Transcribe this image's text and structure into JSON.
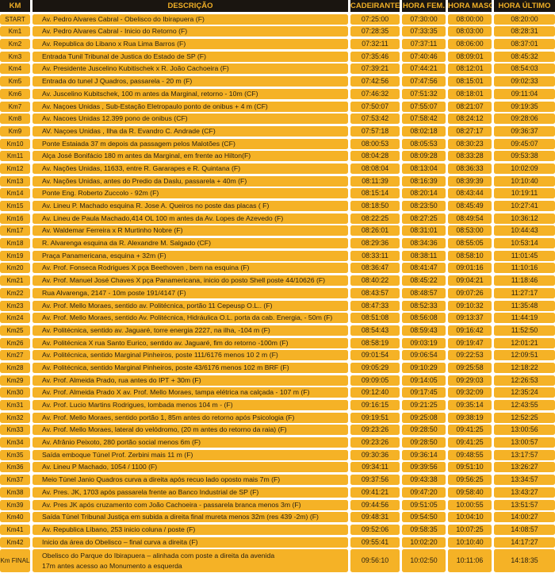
{
  "colors": {
    "header_bg": "#1a1510",
    "header_text": "#f0af26",
    "cell_bg": "#f5b226",
    "cell_text": "#2a2212",
    "page_bg": "#ffffff"
  },
  "header": {
    "columns": [
      "KM",
      "DESCRIÇÃO",
      "CADEIRANTE",
      "HORA FEM.",
      "HORA MASC.",
      "HORA ÚLTIMO"
    ]
  },
  "rows": [
    {
      "km": "START",
      "desc": "Av. Pedro Alvares Cabral - Obelisco do Ibirapuera (F)",
      "times": [
        "07:25:00",
        "07:30:00",
        "08:00:00",
        "08:20:00"
      ]
    },
    {
      "km": "Km1",
      "desc": "Av. Pedro Alvares Cabral - Inicio do Retorno  (F)",
      "times": [
        "07:28:35",
        "07:33:35",
        "08:03:00",
        "08:28:31"
      ]
    },
    {
      "km": "Km2",
      "desc": "Av. Republica do Libano  x  Rua Lima Barros  (F)",
      "times": [
        "07:32:11",
        "07:37:11",
        "08:06:00",
        "08:37:01"
      ]
    },
    {
      "km": "Km3",
      "desc": "Entrada Tunil Tribunal de Justica do Estado de SP (F)",
      "times": [
        "07:35:46",
        "07:40:46",
        "08:09:01",
        "08:45:32"
      ]
    },
    {
      "km": "Km4",
      "desc": "Av. Presidente Juscelino Kubitischek  x  R. João Cachoeira (F)",
      "times": [
        "07:39:21",
        "07:44:21",
        "08:12:01",
        "08:54:03"
      ]
    },
    {
      "km": "Km5",
      "desc": "Entrada do tunel J Quadros,  passarela - 20 m (F)",
      "times": [
        "07:42:56",
        "07:47:56",
        "08:15:01",
        "09:02:33"
      ]
    },
    {
      "km": "Km6",
      "desc": "Av. Juscelino Kubitschek, 100 m antes da Marginal, retorno - 10m (CF)",
      "times": [
        "07:46:32",
        "07:51:32",
        "08:18:01",
        "09:11:04"
      ]
    },
    {
      "km": "Km7",
      "desc": "Av. Naçoes Unidas , Sub-Estação Eletropaulo ponto de onibus + 4 m (CF)",
      "times": [
        "07:50:07",
        "07:55:07",
        "08:21:07",
        "09:19:35"
      ]
    },
    {
      "km": "Km8",
      "desc": "Av. Nacoes Unidas 12.399  pono de onibus (CF)",
      "times": [
        "07:53:42",
        "07:58:42",
        "08:24:12",
        "09:28:06"
      ]
    },
    {
      "km": "Km9",
      "desc": "AV. Naçoes Unidas , Ilha da R.  Evandro C. Andrade (CF)",
      "times": [
        "07:57:18",
        "08:02:18",
        "08:27:17",
        "09:36:37"
      ]
    },
    {
      "km": "Km10",
      "desc": "Ponte Estaiada 37 m  depois da passagem pelos Malotões (CF)",
      "times": [
        "08:00:53",
        "08:05:53",
        "08:30:23",
        "09:45:07"
      ]
    },
    {
      "km": "Km11",
      "desc": "Alça  José Bonifácio 180 m antes da Marginal, em frente ao Hilton(F)",
      "times": [
        "08:04:28",
        "08:09:28",
        "08:33:28",
        "09:53:38"
      ]
    },
    {
      "km": "Km12",
      "desc": "Av. Nações Unidas, 11633, entre R. Gararapes e R. Quintana (F)",
      "times": [
        "08:08:04",
        "08:13:04",
        "08:36:33",
        "10:02:09"
      ]
    },
    {
      "km": "Km13",
      "desc": "Av. Nações Unidas, antes do Predio da Daslu, passarela + 40m (F)",
      "times": [
        "08:11:39",
        "08:16:39",
        "08:39:39",
        "10:10:40"
      ]
    },
    {
      "km": "Km14",
      "desc": "Ponte Eng. Roberto Zuccolo  - 92m (F)",
      "times": [
        "08:15:14",
        "08:20:14",
        "08:43:44",
        "10:19:11"
      ]
    },
    {
      "km": "Km15",
      "desc": "Av. Lineu P. Machado esquina R. Jose A. Queiros no poste das placas ( F)",
      "times": [
        "08:18:50",
        "08:23:50",
        "08:45:49",
        "10:27:41"
      ]
    },
    {
      "km": "Km16",
      "desc": "Av. Lineu de Paula Machado,414 OL 100 m antes da Av. Lopes de Azevedo (F)",
      "times": [
        "08:22:25",
        "08:27:25",
        "08:49:54",
        "10:36:12"
      ]
    },
    {
      "km": "Km17",
      "desc": "Av. Waldemar Ferreira x  R Murtinho Nobre (F)",
      "times": [
        "08:26:01",
        "08:31:01",
        "08:53:00",
        "10:44:43"
      ]
    },
    {
      "km": "Km18",
      "desc": "R. Alvarenga esquina da R. Alexandre M. Salgado (CF)",
      "times": [
        "08:29:36",
        "08:34:36",
        "08:55:05",
        "10:53:14"
      ]
    },
    {
      "km": "Km19",
      "desc": "Praça Panamericana, esquina + 32m  (F)",
      "times": [
        "08:33:11",
        "08:38:11",
        "08:58:10",
        "11:01:45"
      ]
    },
    {
      "km": "Km20",
      "desc": "Av. Prof. Fonseca Rodrigues X pça Beethoven , bem na esquina (F)",
      "times": [
        "08:36:47",
        "08:41:47",
        "09:01:16",
        "11:10:16"
      ]
    },
    {
      "km": "Km21",
      "desc": "Av. Prof. Manuel José Chaves X pça Panamericana, inicio do posto Shell poste 44/10626 (F)",
      "times": [
        "08:40:22",
        "08:45:22",
        "09:04:21",
        "11:18:46"
      ]
    },
    {
      "km": "Km22",
      "desc": "Rua Alvarenga, 2147 - 10m poste 191/4147 (F)",
      "times": [
        "08:43:57",
        "08:48:57",
        "09:07:26",
        "11:27:17"
      ]
    },
    {
      "km": "Km23",
      "desc": "Av. Prof. Mello Moraes, sentido av. Politécnica, portão 11 Cepeusp O.L.. (F)",
      "times": [
        "08:47:33",
        "08:52:33",
        "09:10:32",
        "11:35:48"
      ]
    },
    {
      "km": "Km24",
      "desc": "Av. Prof. Mello Moraes, sentido Av. Politécnica,  Hidráulica O.L. porta da cab. Energia, - 50m (F)",
      "times": [
        "08:51:08",
        "08:56:08",
        "09:13:37",
        "11:44:19"
      ]
    },
    {
      "km": "Km25",
      "desc": "Av. Politécnica, sentido av. Jaguaré, torre energia 2227,  na ilha, -104 m (F)",
      "times": [
        "08:54:43",
        "08:59:43",
        "09:16:42",
        "11:52:50"
      ]
    },
    {
      "km": "Km26",
      "desc": "Av. Politécnica X rua Santo Eurico, sentido av. Jaguaré, fim do retorno -100m (F)",
      "times": [
        "08:58:19",
        "09:03:19",
        "09:19:47",
        "12:01:21"
      ]
    },
    {
      "km": "Km27",
      "desc": "Av. Politécnica, sentido Marginal Pinheiros, poste 111/6176 menos 10 2 m  (F)",
      "times": [
        "09:01:54",
        "09:06:54",
        "09:22:53",
        "12:09:51"
      ]
    },
    {
      "km": "Km28",
      "desc": "Av. Politécnica, sentido Marginal Pinheiros, poste 43/6176 menos 102 m BRF  (F)",
      "times": [
        "09:05:29",
        "09:10:29",
        "09:25:58",
        "12:18:22"
      ]
    },
    {
      "km": "Km29",
      "desc": "Av. Prof. Almeida Prado, rua antes do IPT + 30m (F)",
      "times": [
        "09:09:05",
        "09:14:05",
        "09:29:03",
        "12:26:53"
      ]
    },
    {
      "km": "Km30",
      "desc": "Av. Prof. Almeida Prado X av. Prof. Mello Moraes, tampa elétrica na calçada  - 107 m (F)",
      "times": [
        "09:12:40",
        "09:17:45",
        "09:32:09",
        "12:35:24"
      ]
    },
    {
      "km": "Km31",
      "desc": "Av. Prof. Lucio Martins Rodrigues, lombada menos 104 m - (F)",
      "times": [
        "09:16:15",
        "09:21:25",
        "09:35:14",
        "12:43:55"
      ]
    },
    {
      "km": "Km32",
      "desc": "Av. Prof. Mello Moraes, sentido portão 1, 85m antes do retorno após Psicologia  (F)",
      "times": [
        "09:19:51",
        "09:25:08",
        "09:38:19",
        "12:52:25"
      ]
    },
    {
      "km": "Km33",
      "desc": "Av. Prof. Mello Moraes,  lateral do velódromo, (20 m antes do retorno da raia) (F)",
      "times": [
        "09:23:26",
        "09:28:50",
        "09:41:25",
        "13:00:56"
      ]
    },
    {
      "km": "Km34",
      "desc": "Av. Afrânio Peixoto, 280  portão social menos 6m (F)",
      "times": [
        "09:23:26",
        "09:28:50",
        "09:41:25",
        "13:00:57"
      ]
    },
    {
      "km": "Km35",
      "desc": "Saída emboque Túnel Prof. Zerbini mais 11 m (F)",
      "times": [
        "09:30:36",
        "09:36:14",
        "09:48:55",
        "13:17:57"
      ]
    },
    {
      "km": "Km36",
      "desc": "Av. Lineu P Machado, 1054 / 1100 (F)",
      "times": [
        "09:34:11",
        "09:39:56",
        "09:51:10",
        "13:26:27"
      ]
    },
    {
      "km": "Km37",
      "desc": "Meio Túnel Janio Quadros curva a direita após recuo lado oposto mais 7m (F)",
      "times": [
        "09:37:56",
        "09:43:38",
        "09:56:25",
        "13:34:57"
      ]
    },
    {
      "km": "Km38",
      "desc": "Av. Pres. JK, 1703 após passarela frente ao Banco Industrial de SP (F)",
      "times": [
        "09:41:21",
        "09:47:20",
        "09:58:40",
        "13:43:27"
      ]
    },
    {
      "km": "Km39",
      "desc": "Av. Pres JK após cruzamento com João Cachoeira  - passarela branca menos 3m (F)",
      "times": [
        "09:44:56",
        "09:51:05",
        "10:00:55",
        "13:51:57"
      ]
    },
    {
      "km": "Km40",
      "desc": "Saída Túnel Tribunal Justiça em subida a direita final mureta menos 32m (res 439 -2m) (F)",
      "times": [
        "09:48:31",
        "09:54:50",
        "10:04:10",
        "14:00:27"
      ]
    },
    {
      "km": "Km41",
      "desc": "Av. Republica Líbano, 253 inicio coluna / poste (F)",
      "times": [
        "09:52:06",
        "09:58:35",
        "10:07:25",
        "14:08:57"
      ]
    },
    {
      "km": "Km42",
      "desc": "Inicio da área do Obelisco – final curva a direita (F)",
      "times": [
        "09:55:41",
        "10:02:20",
        "10:10:40",
        "14:17:27"
      ]
    },
    {
      "km": "Km FINAL",
      "desc": "Obelisco do Parque do Ibirapuera – alinhada com poste a direita da avenida",
      "desc2": "17m antes acesso ao Monumento a esquerda",
      "tall": true,
      "times": [
        "09:56:10",
        "10:02:50",
        "10:11:06",
        "14:18:35"
      ]
    }
  ]
}
